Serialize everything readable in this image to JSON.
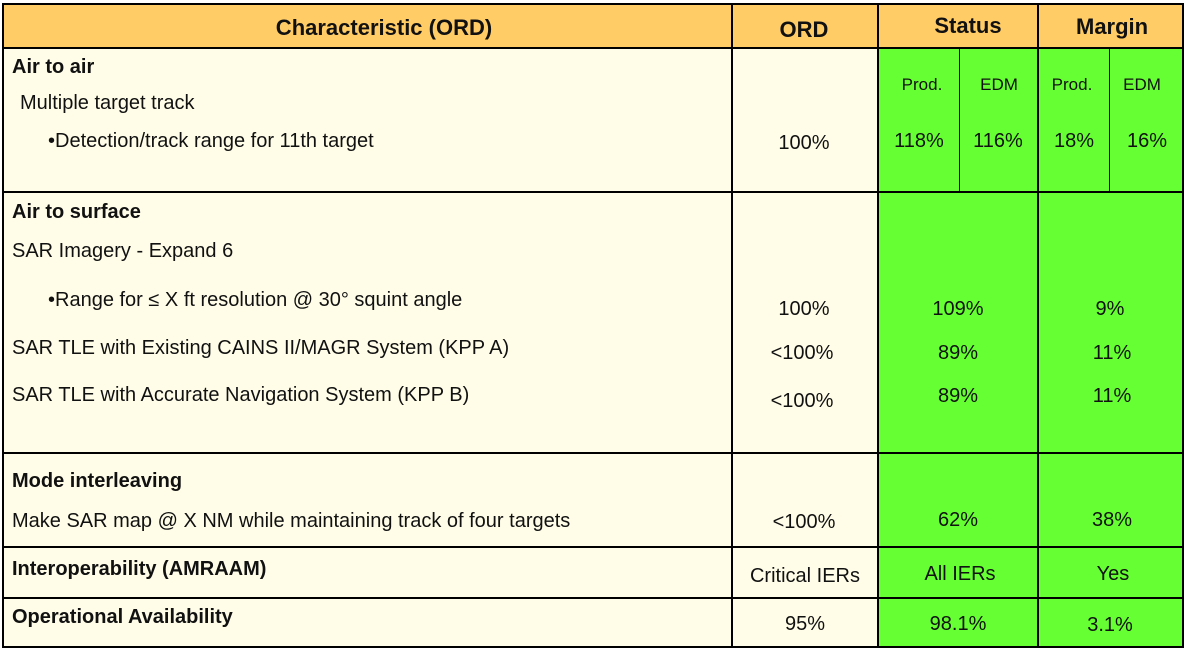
{
  "header": {
    "characteristic": "Characteristic (ORD)",
    "ord": "ORD",
    "status": "Status",
    "margin": "Margin"
  },
  "air_to_air": {
    "title": "Air to air",
    "subtitle": "Multiple target track",
    "item_label": "•Detection/track range for 11th target",
    "ord": "100%",
    "status_prod_label": "Prod.",
    "status_edm_label": "EDM",
    "margin_prod_label": "Prod.",
    "margin_edm_label": "EDM",
    "status_prod": "118%",
    "status_edm": "116%",
    "margin_prod": "18%",
    "margin_edm": "16%"
  },
  "air_to_surface": {
    "title": "Air to surface",
    "subtitle": "SAR Imagery - Expand 6",
    "rows": [
      {
        "label": "•Range for ≤  X ft resolution @ 30° squint angle",
        "ord": "100%",
        "status": "109%",
        "margin": "9%"
      },
      {
        "label": "SAR TLE with Existing CAINS II/MAGR System (KPP A)",
        "ord": "<100%",
        "status": "89%",
        "margin": "11%"
      },
      {
        "label": "SAR TLE with Accurate Navigation System (KPP B)",
        "ord": "<100%",
        "status": "89%",
        "margin": "11%"
      }
    ]
  },
  "mode_interleaving": {
    "title": "Mode interleaving",
    "label": "Make SAR map @ X NM while maintaining track of four targets",
    "ord": "<100%",
    "status": "62%",
    "margin": "38%"
  },
  "interoperability": {
    "title": "Interoperability (AMRAAM)",
    "ord": "Critical IERs",
    "status": "All IERs",
    "margin": "Yes"
  },
  "availability": {
    "title": "Operational Availability",
    "ord": "95%",
    "status": "98.1%",
    "margin": "3.1%"
  },
  "colors": {
    "header_bg": "#ffcc66",
    "cell_bg": "#fffde8",
    "status_green": "#66ff33"
  }
}
